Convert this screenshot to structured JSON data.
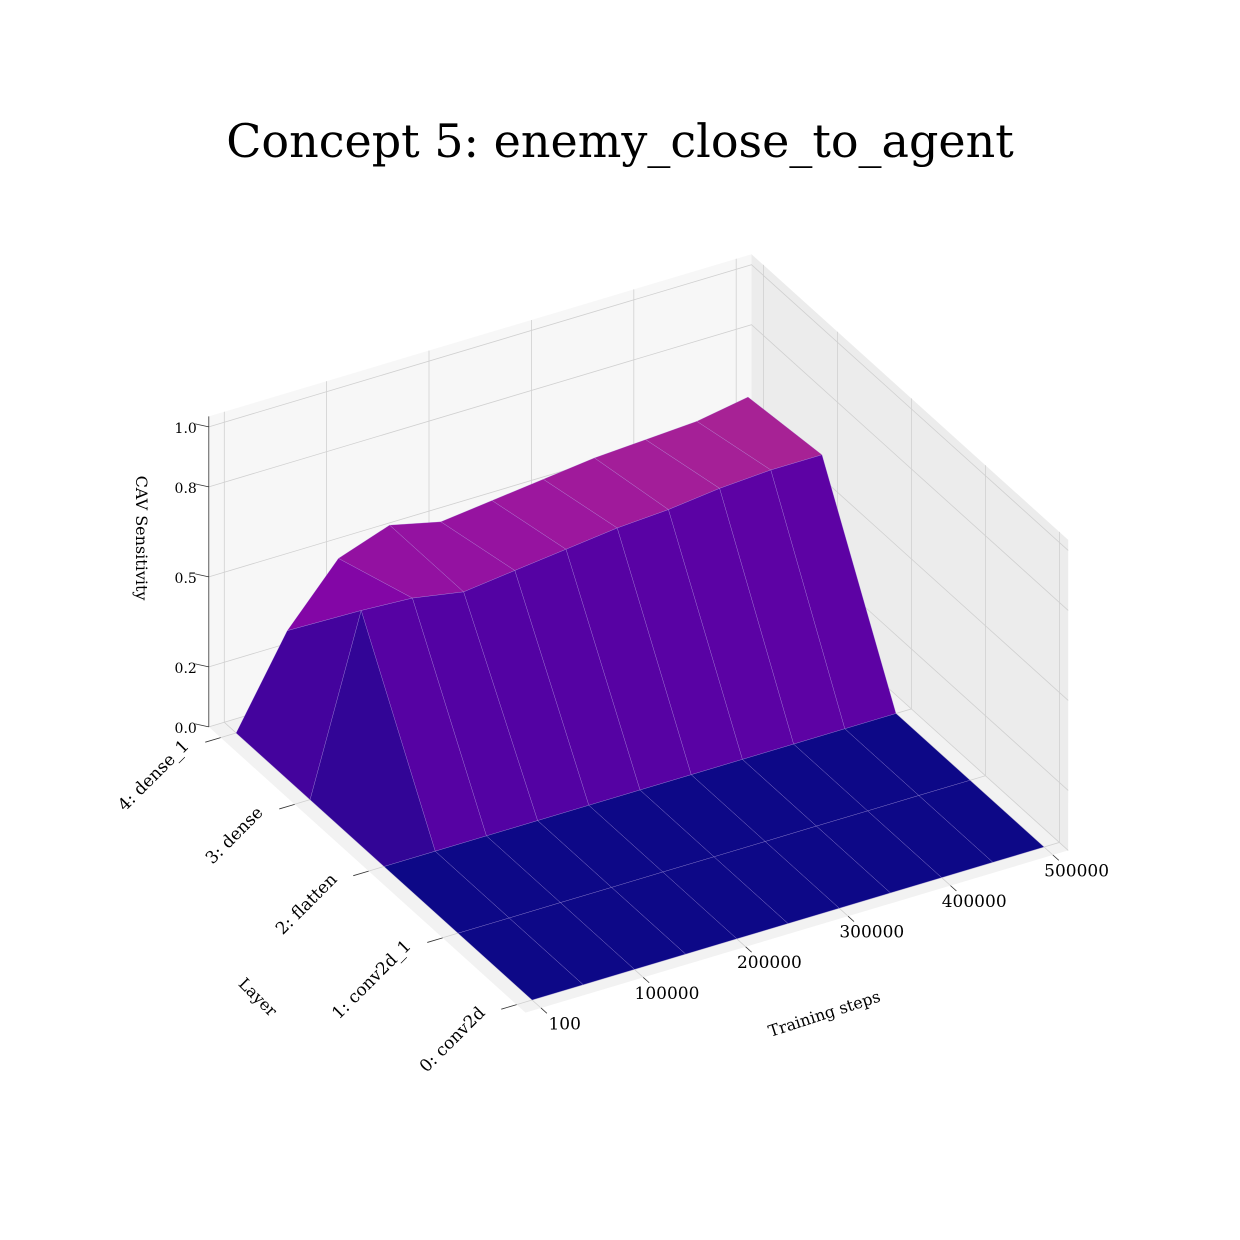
{
  "chart_data": {
    "type": "surface",
    "title": "Concept 5: enemy_close_to_agent",
    "xlabel": "Training steps",
    "ylabel": "Layer",
    "zlabel": "CAV Sensitivity",
    "x": [
      100,
      50000,
      100000,
      150000,
      200000,
      250000,
      300000,
      350000,
      400000,
      450000,
      500000
    ],
    "x_ticks": [
      "100",
      "100000",
      "200000",
      "300000",
      "400000",
      "500000"
    ],
    "layers": [
      "0: conv2d",
      "1: conv2d_1",
      "2: flatten",
      "3: dense",
      "4: dense_1"
    ],
    "z_ticks": [
      "0.0",
      "0.2",
      "0.5",
      "0.8",
      "1.0"
    ],
    "zlim": [
      0,
      1
    ],
    "grid": true,
    "colormap": "plasma",
    "series": [
      {
        "values": [
          0,
          0,
          0,
          0,
          0,
          0,
          0,
          0,
          0,
          0,
          0
        ]
      },
      {
        "values": [
          0,
          0,
          0,
          0,
          0,
          0,
          0,
          0,
          0,
          0,
          0
        ]
      },
      {
        "values": [
          0,
          0,
          0,
          0,
          0,
          0,
          0,
          0,
          0,
          0,
          0
        ]
      },
      {
        "values": [
          0,
          0.58,
          0.57,
          0.54,
          0.56,
          0.58,
          0.6,
          0.61,
          0.63,
          0.64,
          0.64
        ]
      },
      {
        "values": [
          0,
          0.29,
          0.48,
          0.54,
          0.5,
          0.52,
          0.54,
          0.56,
          0.57,
          0.58,
          0.61
        ]
      }
    ]
  }
}
